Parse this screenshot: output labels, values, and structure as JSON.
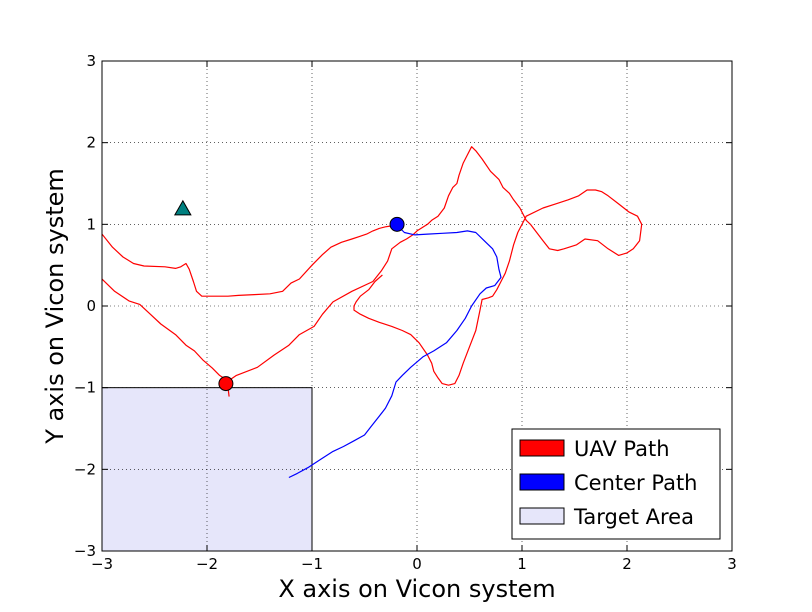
{
  "chart_data": {
    "type": "line",
    "title": "",
    "xlabel": "X axis on Vicon system",
    "ylabel": "Y axis on Vicon system",
    "xlim": [
      -3,
      3
    ],
    "ylim": [
      -3,
      3
    ],
    "xticks": [
      -3,
      -2,
      -1,
      0,
      1,
      2,
      3
    ],
    "yticks": [
      -3,
      -2,
      -1,
      0,
      1,
      2,
      3
    ],
    "xtick_labels": [
      "−3",
      "−2",
      "−1",
      "0",
      "1",
      "2",
      "3"
    ],
    "ytick_labels": [
      "−3",
      "−2",
      "−1",
      "0",
      "1",
      "2",
      "3"
    ],
    "grid": true,
    "legend_position": "bottom-right",
    "legend": [
      {
        "label": "UAV Path",
        "color": "#ff0000"
      },
      {
        "label": "Center Path",
        "color": "#0000ff"
      },
      {
        "label": "Target Area",
        "color": "#e6e6fa"
      }
    ],
    "target_area": {
      "x0": -3,
      "x1": -1,
      "y0": -3,
      "y1": -1,
      "color": "#e6e6fa"
    },
    "series": [
      {
        "color": "#ff0000",
        "x": [
          -1.82,
          -1.8,
          -1.72,
          -1.52,
          -1.36,
          -1.22,
          -1.12,
          -0.98,
          -0.9,
          -0.8,
          -0.62,
          -0.42,
          -0.34,
          -0.28,
          -0.24,
          -0.16,
          -0.1,
          -0.04,
          0.0,
          0.1,
          0.14,
          0.2,
          0.26,
          0.3,
          0.34,
          0.38,
          0.4,
          0.44,
          0.48,
          0.52,
          0.56,
          0.62,
          0.7,
          0.78,
          0.82,
          0.88,
          0.92,
          0.98,
          1.04,
          1.08,
          1.14,
          1.2,
          1.26,
          1.34,
          1.4,
          1.52,
          1.6,
          1.72,
          1.82,
          1.92,
          2.0,
          2.06,
          2.12,
          2.14,
          2.1,
          2.02,
          1.92,
          1.82,
          1.76,
          1.7,
          1.62,
          1.54,
          1.44,
          1.32,
          1.2,
          1.04,
          0.96,
          0.92,
          0.88,
          0.84,
          0.8,
          0.76,
          0.72,
          0.68,
          0.62,
          0.6,
          0.56,
          0.5,
          0.44,
          0.4,
          0.36,
          0.3,
          0.24,
          0.2,
          0.16,
          0.14,
          0.1,
          0.02,
          -0.06,
          -0.14,
          -0.24,
          -0.36,
          -0.46,
          -0.54,
          -0.6,
          -0.6,
          -0.58,
          -0.54,
          -0.46,
          -0.4,
          -0.33
        ],
        "y": [
          -0.95,
          -0.92,
          -0.85,
          -0.75,
          -0.6,
          -0.48,
          -0.35,
          -0.25,
          -0.1,
          0.05,
          0.18,
          0.3,
          0.43,
          0.55,
          0.7,
          0.78,
          0.82,
          0.87,
          0.92,
          1.0,
          1.05,
          1.1,
          1.2,
          1.35,
          1.45,
          1.5,
          1.6,
          1.75,
          1.85,
          1.95,
          1.9,
          1.8,
          1.65,
          1.55,
          1.45,
          1.38,
          1.3,
          1.2,
          1.05,
          1.0,
          0.9,
          0.8,
          0.7,
          0.68,
          0.7,
          0.75,
          0.82,
          0.8,
          0.7,
          0.62,
          0.65,
          0.7,
          0.8,
          1.0,
          1.1,
          1.15,
          1.25,
          1.35,
          1.4,
          1.42,
          1.42,
          1.35,
          1.3,
          1.25,
          1.2,
          1.1,
          0.9,
          0.75,
          0.55,
          0.4,
          0.3,
          0.2,
          0.12,
          0.1,
          0.08,
          -0.05,
          -0.3,
          -0.5,
          -0.7,
          -0.85,
          -0.95,
          -0.97,
          -0.95,
          -0.88,
          -0.8,
          -0.7,
          -0.6,
          -0.45,
          -0.35,
          -0.3,
          -0.25,
          -0.2,
          -0.15,
          -0.1,
          -0.05,
          0.0,
          0.05,
          0.12,
          0.2,
          0.3,
          0.38
        ]
      },
      {
        "color": "#ff0000",
        "x": [
          -3.0,
          -2.9,
          -2.8,
          -2.7,
          -2.6,
          -2.4,
          -2.3,
          -2.25,
          -2.2,
          -2.17,
          -2.13,
          -2.1,
          -2.05,
          -1.96,
          -1.88,
          -1.8,
          -1.7,
          -1.55,
          -1.4,
          -1.28,
          -1.2,
          -1.12,
          -1.0,
          -0.9,
          -0.82,
          -0.72,
          -0.62,
          -0.55,
          -0.48,
          -0.42,
          -0.36,
          -0.3,
          -0.25,
          -0.2,
          -0.14
        ],
        "y": [
          0.88,
          0.72,
          0.6,
          0.52,
          0.49,
          0.48,
          0.46,
          0.48,
          0.52,
          0.45,
          0.3,
          0.18,
          0.12,
          0.12,
          0.12,
          0.12,
          0.13,
          0.14,
          0.15,
          0.18,
          0.28,
          0.33,
          0.5,
          0.63,
          0.72,
          0.78,
          0.82,
          0.85,
          0.88,
          0.92,
          0.95,
          0.97,
          0.98,
          0.99,
          1.0
        ]
      },
      {
        "color": "#ff0000",
        "x": [
          -3.0,
          -2.88,
          -2.74,
          -2.64,
          -2.54,
          -2.44,
          -2.3,
          -2.2,
          -2.12,
          -2.04,
          -1.95,
          -1.88,
          -1.82,
          -1.8,
          -1.79
        ],
        "y": [
          0.33,
          0.18,
          0.06,
          0.02,
          -0.1,
          -0.22,
          -0.35,
          -0.48,
          -0.55,
          -0.66,
          -0.76,
          -0.85,
          -0.9,
          -1.0,
          -1.11
        ]
      },
      {
        "color": "#0000ff",
        "x": [
          -0.2,
          -0.12,
          -0.02,
          0.1,
          0.24,
          0.38,
          0.48,
          0.56,
          0.64,
          0.72,
          0.76,
          0.78,
          0.8,
          0.74,
          0.66,
          0.6,
          0.52,
          0.46,
          0.38,
          0.28,
          0.16,
          0.06,
          -0.06,
          -0.14,
          -0.2,
          -0.24,
          -0.3,
          -0.36,
          -0.44,
          -0.5,
          -0.6,
          -0.7,
          -0.8,
          -0.92,
          -1.04,
          -1.14,
          -1.22
        ],
        "y": [
          1.0,
          0.9,
          0.87,
          0.88,
          0.89,
          0.9,
          0.92,
          0.9,
          0.8,
          0.7,
          0.6,
          0.45,
          0.35,
          0.25,
          0.22,
          0.15,
          0.0,
          -0.15,
          -0.3,
          -0.45,
          -0.55,
          -0.62,
          -0.75,
          -0.85,
          -0.93,
          -1.1,
          -1.25,
          -1.35,
          -1.48,
          -1.58,
          -1.65,
          -1.72,
          -1.78,
          -1.88,
          -1.98,
          -2.05,
          -2.1
        ]
      }
    ],
    "markers": [
      {
        "shape": "circle",
        "x": -1.82,
        "y": -0.95,
        "color": "#ff0000"
      },
      {
        "shape": "circle",
        "x": -0.19,
        "y": 1.0,
        "color": "#0000ff"
      },
      {
        "shape": "triangle",
        "x": -2.23,
        "y": 1.19,
        "color": "#008080"
      }
    ]
  }
}
